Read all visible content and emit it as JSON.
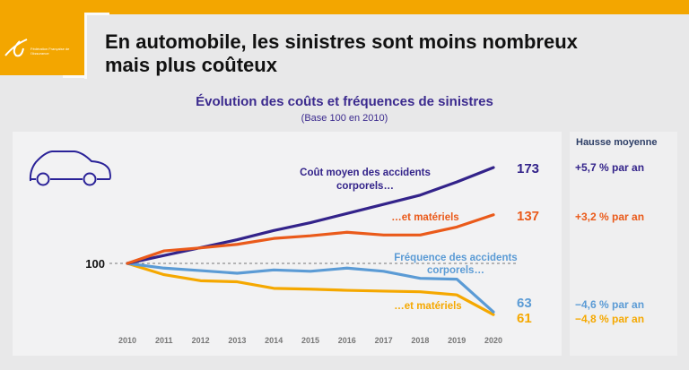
{
  "logo": {
    "text": "Fédération Française de l'Assurance"
  },
  "slide": {
    "title_line1": "En automobile, les sinistres sont moins nombreux",
    "title_line2": "mais plus coûteux"
  },
  "chart_data": {
    "type": "line",
    "title": "Évolution des coûts et fréquences de sinistres",
    "subtitle": "(Base 100 en 2010)",
    "x": [
      "2010",
      "2011",
      "2012",
      "2013",
      "2014",
      "2015",
      "2016",
      "2017",
      "2018",
      "2019",
      "2020"
    ],
    "baseline": {
      "value": 100,
      "label": "100",
      "style": "dashed"
    },
    "ylim": [
      55,
      180
    ],
    "grid": false,
    "series": [
      {
        "name": "Coût moyen des accidents corporels…",
        "name_line1": "Coût moyen des accidents",
        "name_line2": "corporels…",
        "color": "#33238a",
        "values": [
          100,
          106,
          112,
          118,
          125,
          131,
          138,
          145,
          152,
          162,
          173
        ],
        "end_label": "173",
        "avg_increase": "+5,7 % par an"
      },
      {
        "name": "…et matériels",
        "color": "#ea5a1a",
        "values": [
          100,
          109.5,
          111.8,
          114.5,
          119,
          121,
          123.7,
          121.6,
          121.6,
          127.7,
          137
        ],
        "end_label": "137",
        "avg_increase": "+3,2 % par an"
      },
      {
        "name": "Fréquence des accidents corporels…",
        "name_line1": "Fréquence des accidents",
        "name_line2": "corporels…",
        "color": "#5b9bd5",
        "values": [
          100,
          96.4,
          94.5,
          92.5,
          95,
          94,
          96.4,
          94,
          88.6,
          88,
          63
        ],
        "end_label": "63",
        "avg_increase": "−4,6 % par an"
      },
      {
        "name": "…et matériels",
        "color": "#f5a800",
        "values": [
          100,
          91.4,
          86.8,
          86,
          81,
          80.4,
          79.5,
          78.9,
          78.4,
          76,
          61
        ],
        "end_label": "61",
        "avg_increase": "−4,8 % par an"
      }
    ],
    "right_panel_header": "Hausse moyenne"
  },
  "icons": {
    "car": "car-outline-icon"
  }
}
